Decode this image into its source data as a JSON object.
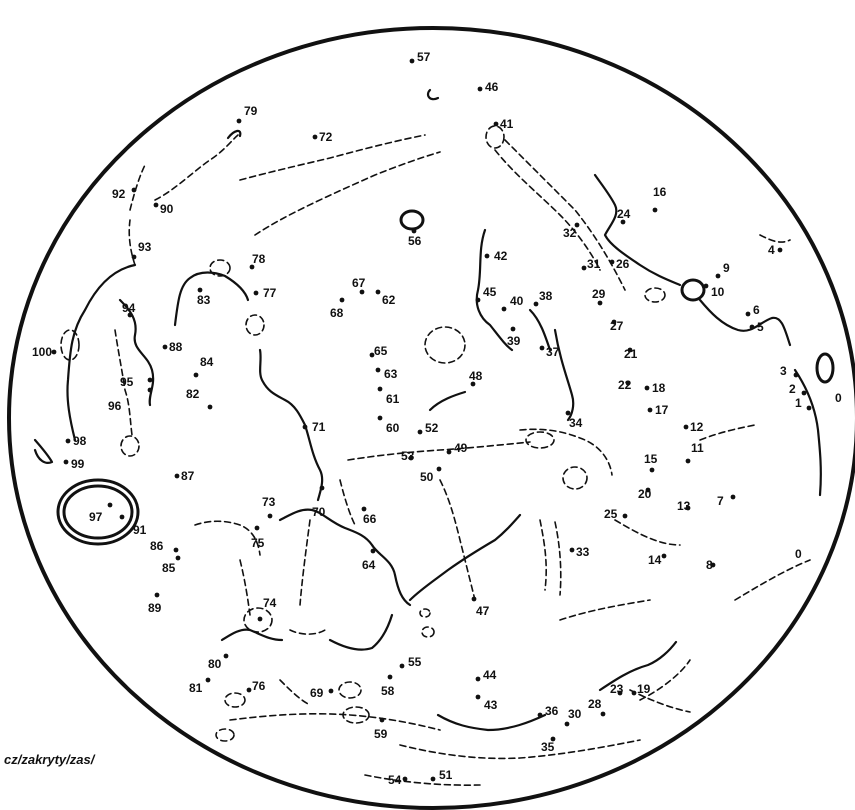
{
  "legend_text": "cz/zakryty/zas/",
  "edge_label": "0",
  "points": [
    {
      "id": "0",
      "label": "0"
    },
    {
      "id": "1",
      "label": "1"
    },
    {
      "id": "2",
      "label": "2"
    },
    {
      "id": "3",
      "label": "3"
    },
    {
      "id": "4",
      "label": "4"
    },
    {
      "id": "5",
      "label": "5"
    },
    {
      "id": "6",
      "label": "6"
    },
    {
      "id": "7",
      "label": "7"
    },
    {
      "id": "8",
      "label": "8"
    },
    {
      "id": "9",
      "label": "9"
    },
    {
      "id": "10",
      "label": "10"
    },
    {
      "id": "11",
      "label": "11"
    },
    {
      "id": "12",
      "label": "12"
    },
    {
      "id": "13",
      "label": "13"
    },
    {
      "id": "14",
      "label": "14"
    },
    {
      "id": "15",
      "label": "15"
    },
    {
      "id": "16",
      "label": "16"
    },
    {
      "id": "17",
      "label": "17"
    },
    {
      "id": "18",
      "label": "18"
    },
    {
      "id": "19",
      "label": "19"
    },
    {
      "id": "20",
      "label": "20"
    },
    {
      "id": "21",
      "label": "21"
    },
    {
      "id": "22",
      "label": "22"
    },
    {
      "id": "23",
      "label": "23"
    },
    {
      "id": "24",
      "label": "24"
    },
    {
      "id": "25",
      "label": "25"
    },
    {
      "id": "26",
      "label": "26"
    },
    {
      "id": "27",
      "label": "27"
    },
    {
      "id": "28",
      "label": "28"
    },
    {
      "id": "29",
      "label": "29"
    },
    {
      "id": "30",
      "label": "30"
    },
    {
      "id": "31",
      "label": "31"
    },
    {
      "id": "32",
      "label": "32"
    },
    {
      "id": "33",
      "label": "33"
    },
    {
      "id": "34",
      "label": "34"
    },
    {
      "id": "35",
      "label": "35"
    },
    {
      "id": "36",
      "label": "36"
    },
    {
      "id": "37",
      "label": "37"
    },
    {
      "id": "38",
      "label": "38"
    },
    {
      "id": "39",
      "label": "39"
    },
    {
      "id": "40",
      "label": "40"
    },
    {
      "id": "41",
      "label": "41"
    },
    {
      "id": "42",
      "label": "42"
    },
    {
      "id": "43",
      "label": "43"
    },
    {
      "id": "44",
      "label": "44"
    },
    {
      "id": "45",
      "label": "45"
    },
    {
      "id": "46",
      "label": "46"
    },
    {
      "id": "47",
      "label": "47"
    },
    {
      "id": "48",
      "label": "48"
    },
    {
      "id": "49",
      "label": "49"
    },
    {
      "id": "50",
      "label": "50"
    },
    {
      "id": "51",
      "label": "51"
    },
    {
      "id": "52",
      "label": "52"
    },
    {
      "id": "53",
      "label": "53"
    },
    {
      "id": "54",
      "label": "54"
    },
    {
      "id": "55",
      "label": "55"
    },
    {
      "id": "56",
      "label": "56"
    },
    {
      "id": "57",
      "label": "57"
    },
    {
      "id": "58",
      "label": "58"
    },
    {
      "id": "59",
      "label": "59"
    },
    {
      "id": "60",
      "label": "60"
    },
    {
      "id": "61",
      "label": "61"
    },
    {
      "id": "62",
      "label": "62"
    },
    {
      "id": "63",
      "label": "63"
    },
    {
      "id": "64",
      "label": "64"
    },
    {
      "id": "65",
      "label": "65"
    },
    {
      "id": "66",
      "label": "66"
    },
    {
      "id": "67",
      "label": "67"
    },
    {
      "id": "68",
      "label": "68"
    },
    {
      "id": "69",
      "label": "69"
    },
    {
      "id": "70",
      "label": "70"
    },
    {
      "id": "71",
      "label": "71"
    },
    {
      "id": "72",
      "label": "72"
    },
    {
      "id": "73",
      "label": "73"
    },
    {
      "id": "74",
      "label": "74"
    },
    {
      "id": "75",
      "label": "75"
    },
    {
      "id": "76",
      "label": "76"
    },
    {
      "id": "77",
      "label": "77"
    },
    {
      "id": "78",
      "label": "78"
    },
    {
      "id": "79",
      "label": "79"
    },
    {
      "id": "80",
      "label": "80"
    },
    {
      "id": "81",
      "label": "81"
    },
    {
      "id": "82",
      "label": "82"
    },
    {
      "id": "83",
      "label": "83"
    },
    {
      "id": "84",
      "label": "84"
    },
    {
      "id": "85",
      "label": "85"
    },
    {
      "id": "86",
      "label": "86"
    },
    {
      "id": "87",
      "label": "87"
    },
    {
      "id": "88",
      "label": "88"
    },
    {
      "id": "89",
      "label": "89"
    },
    {
      "id": "90",
      "label": "90"
    },
    {
      "id": "91",
      "label": "91"
    },
    {
      "id": "92",
      "label": "92"
    },
    {
      "id": "93",
      "label": "93"
    },
    {
      "id": "94",
      "label": "94"
    },
    {
      "id": "95",
      "label": "95"
    },
    {
      "id": "96",
      "label": "96"
    },
    {
      "id": "97",
      "label": "97"
    },
    {
      "id": "98",
      "label": "98"
    },
    {
      "id": "99",
      "label": "99"
    },
    {
      "id": "100",
      "label": "100"
    }
  ]
}
